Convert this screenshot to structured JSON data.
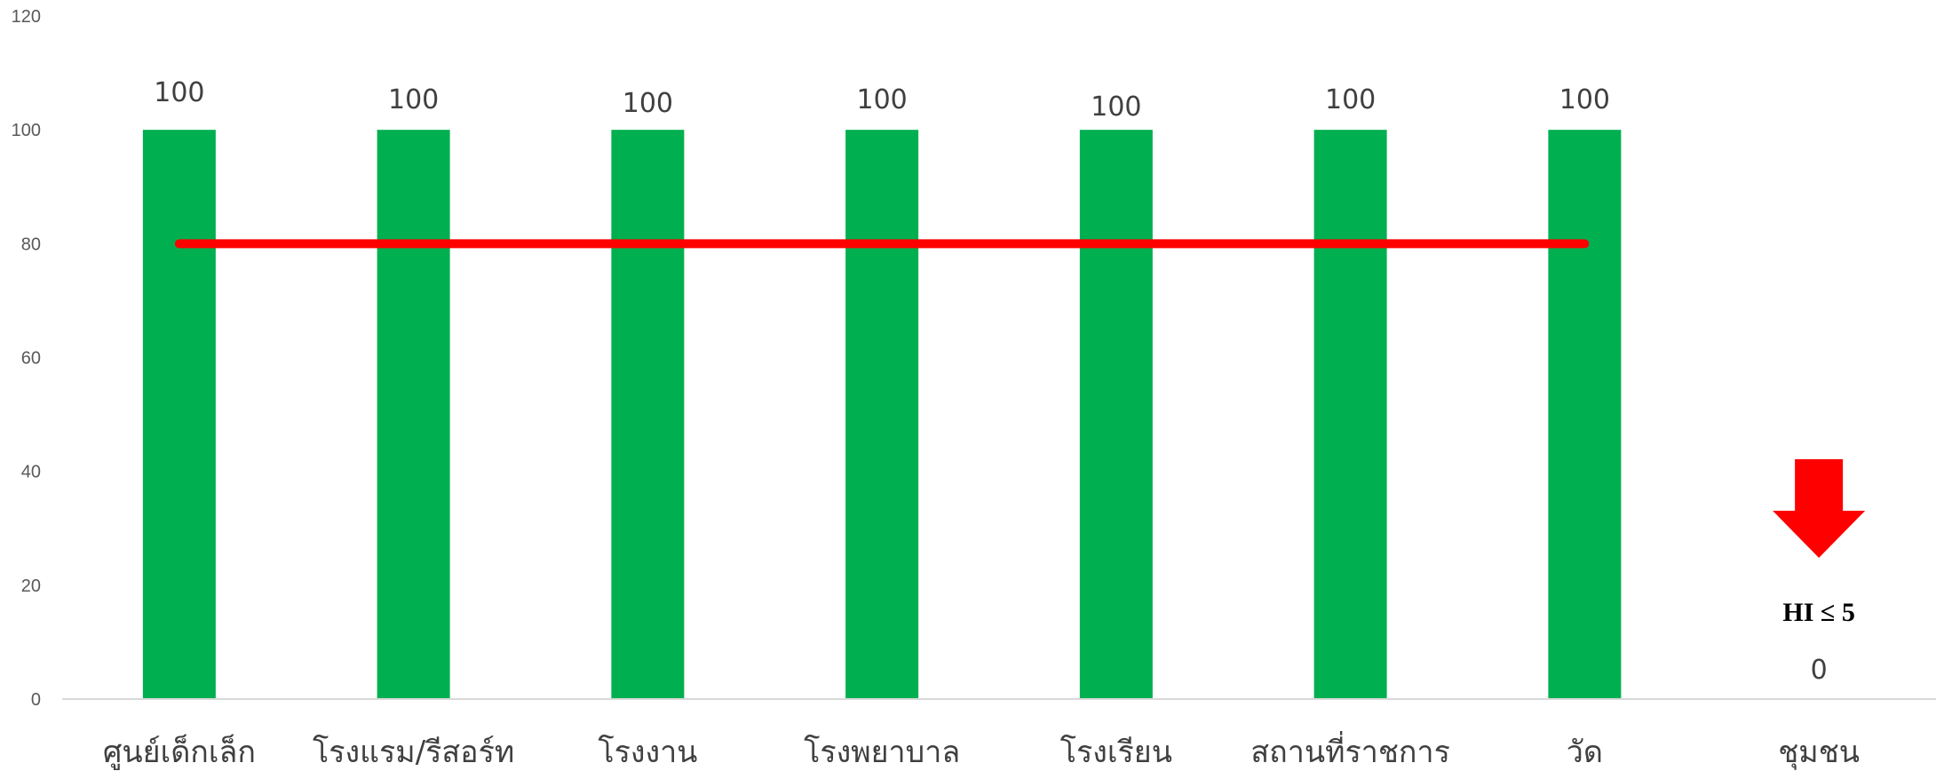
{
  "chart_data": {
    "type": "bar",
    "categories": [
      "ศูนย์เด็กเล็ก",
      "โรงแรม/รีสอร์ท",
      "โรงงาน",
      "โรงพยาบาล",
      "โรงเรียน",
      "สถานที่ราชการ",
      "วัด",
      "ชุมชน"
    ],
    "values": [
      100,
      100,
      100,
      100,
      100,
      100,
      100,
      0
    ],
    "data_labels": [
      "100",
      "100",
      "100",
      "100",
      "100",
      "100",
      "100",
      "0"
    ],
    "ylim": [
      0,
      120
    ],
    "yticks": [
      0,
      20,
      40,
      60,
      80,
      100,
      120
    ],
    "grid": false,
    "target_line": {
      "value": 80,
      "from_category": 0,
      "to_category": 6
    },
    "hi_annotation": "HI ≤ 5",
    "colors": {
      "bar": "#00B050",
      "target_line": "#FF0000",
      "arrow": "#FF0000",
      "axis": "#D9D9D9"
    }
  }
}
